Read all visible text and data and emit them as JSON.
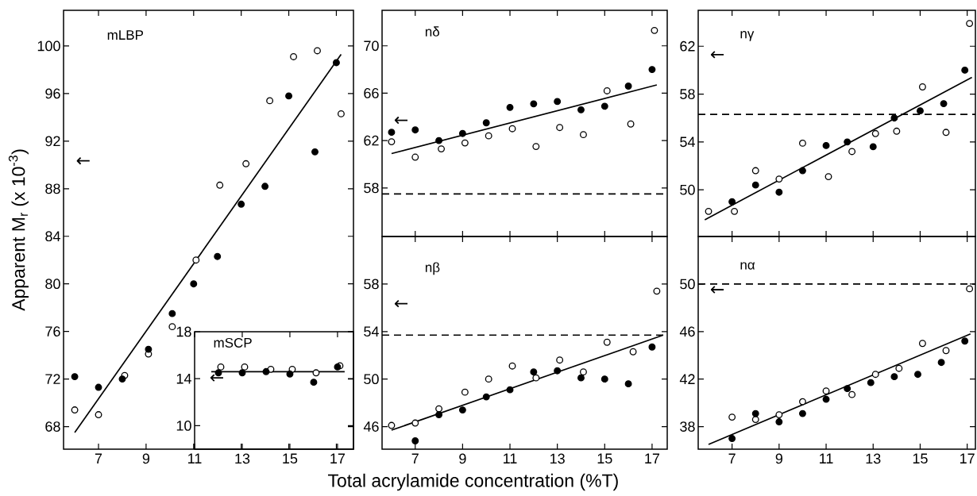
{
  "chart_data": [
    {
      "type": "scatter",
      "title": "mLBP",
      "ylabel": "Apparent M$_{r}$ (x 10$^{-3}$)",
      "xlim": [
        5.53,
        17.72
      ],
      "ylim": [
        66.1,
        103
      ],
      "xticks": [
        7,
        9,
        {
          "value": 11,
          "label": null
        },
        {
          "value": 13,
          "label": null
        },
        {
          "value": 15,
          "label": null
        },
        {
          "value": 17,
          "label": null
        }
      ],
      "yticks": [
        68,
        72,
        76,
        80,
        84,
        88,
        92,
        96,
        100
      ],
      "series": [
        {
          "type": "scatter",
          "color": "#000000",
          "x": [
            6,
            7,
            8,
            9.1,
            10.1,
            11,
            12,
            13,
            14,
            15,
            16.1,
            17
          ],
          "values": [
            72.2,
            71.3,
            72.0,
            74.5,
            77.5,
            80.0,
            82.3,
            86.7,
            88.2,
            95.8,
            91.1,
            98.6
          ]
        },
        {
          "type": "scatter",
          "color": "#ffffff",
          "x": [
            6,
            7,
            8.1,
            9.1,
            10.1,
            11.1,
            12.1,
            13.2,
            14.2,
            15.2,
            16.2,
            17.2
          ],
          "values": [
            69.4,
            69.0,
            72.3,
            74.1,
            76.4,
            82.0,
            88.3,
            90.1,
            95.4,
            99.1,
            99.6,
            94.3
          ]
        },
        {
          "type": "line",
          "marker": "none",
          "color": "#000000",
          "x": [
            6,
            17.2
          ],
          "values": [
            67.5,
            99.3
          ]
        }
      ],
      "annotations": [
        "←"
      ]
    },
    {
      "type": "scatter",
      "title": "mSCP",
      "xlim": [
        11,
        17.67
      ],
      "ylim": [
        8,
        18
      ],
      "xticks": [
        11,
        13,
        15,
        17
      ],
      "yticks": [
        10,
        14,
        18
      ],
      "series": [
        {
          "type": "scatter",
          "color": "#000000",
          "x": [
            12,
            13,
            14,
            15,
            16,
            17
          ],
          "values": [
            14.5,
            14.5,
            14.6,
            14.4,
            13.7,
            15.0
          ]
        },
        {
          "type": "scatter",
          "color": "#ffffff",
          "x": [
            12.1,
            13.1,
            14.2,
            15.1,
            16.1,
            17.1
          ],
          "values": [
            15.0,
            15.0,
            14.8,
            14.8,
            14.5,
            15.1
          ]
        },
        {
          "type": "line",
          "marker": "none",
          "color": "#000000",
          "x": [
            11.7,
            17.3
          ],
          "values": [
            14.6,
            14.6
          ]
        }
      ],
      "annotations": [
        "←"
      ]
    },
    {
      "type": "scatter",
      "title": "nδ",
      "tick_labels": "y",
      "xlim": [
        5.6,
        17.64
      ],
      "ylim": [
        53.9,
        73
      ],
      "xticks": [
        7,
        9,
        11,
        13,
        15,
        17
      ],
      "yticks": [
        58,
        62,
        66,
        70
      ],
      "series": [
        {
          "type": "scatter",
          "color": "#000000",
          "x": [
            6,
            7,
            8,
            9,
            10,
            11,
            12,
            13,
            14,
            15,
            16,
            17
          ],
          "values": [
            62.7,
            62.9,
            62.0,
            62.6,
            63.5,
            64.8,
            65.1,
            65.3,
            64.6,
            64.9,
            66.6,
            68.0
          ]
        },
        {
          "type": "scatter",
          "color": "#ffffff",
          "x": [
            6,
            7,
            8.1,
            9.1,
            10.1,
            11.1,
            12.1,
            13.1,
            14.1,
            15.1,
            16.1,
            17.1
          ],
          "values": [
            61.9,
            60.6,
            61.3,
            61.8,
            62.4,
            63.0,
            61.5,
            63.1,
            62.5,
            66.2,
            63.4,
            71.3
          ]
        },
        {
          "type": "line",
          "marker": "none",
          "color": "#000000",
          "x": [
            6,
            17.2
          ],
          "values": [
            60.9,
            66.7
          ]
        }
      ],
      "ref_lines": [
        {
          "axis": "y",
          "value": 57.5,
          "line_style": "dashed"
        }
      ],
      "annotations": [
        "←"
      ]
    },
    {
      "type": "scatter",
      "title": "nβ",
      "xlabel": "Total acrylamide concentration (%T)",
      "xlim": [
        5.6,
        17.64
      ],
      "ylim": [
        44.1,
        62
      ],
      "xticks": [
        7,
        9,
        11,
        13,
        15,
        17
      ],
      "yticks": [
        46,
        50,
        54,
        58
      ],
      "series": [
        {
          "type": "scatter",
          "color": "#000000",
          "x": [
            7,
            8,
            9,
            10,
            11,
            12,
            13,
            14,
            15,
            16,
            17
          ],
          "values": [
            44.8,
            47.0,
            47.4,
            48.5,
            49.1,
            50.6,
            50.7,
            50.1,
            50.0,
            49.6,
            52.7
          ]
        },
        {
          "type": "scatter",
          "color": "#ffffff",
          "x": [
            6,
            7,
            8,
            9.1,
            10.1,
            11.1,
            12.1,
            13.1,
            14.1,
            15.1,
            16.2,
            17.2
          ],
          "values": [
            46.1,
            46.3,
            47.5,
            48.9,
            50.0,
            51.1,
            50.1,
            51.6,
            50.6,
            53.1,
            52.3,
            57.4
          ]
        },
        {
          "type": "line",
          "marker": "none",
          "color": "#000000",
          "x": [
            6,
            17.47
          ],
          "values": [
            45.7,
            53.7
          ]
        }
      ],
      "ref_lines": [
        {
          "axis": "y",
          "value": 53.7,
          "line_style": "dashed"
        }
      ],
      "annotations": [
        "←"
      ]
    },
    {
      "type": "scatter",
      "title": "nγ",
      "tick_labels": "y",
      "xlim": [
        5.56,
        17.35
      ],
      "ylim": [
        46.1,
        65
      ],
      "xticks": [
        7,
        9,
        11,
        13,
        15,
        17
      ],
      "yticks": [
        50,
        54,
        58,
        62
      ],
      "series": [
        {
          "type": "scatter",
          "color": "#000000",
          "x": [
            7,
            8,
            9,
            10,
            11,
            11.9,
            13,
            13.9,
            15,
            16,
            16.9
          ],
          "values": [
            49.0,
            50.4,
            49.8,
            51.6,
            53.7,
            54.0,
            53.6,
            56.0,
            56.6,
            57.2,
            60.0
          ]
        },
        {
          "type": "scatter",
          "color": "#ffffff",
          "x": [
            6,
            7.1,
            8,
            9,
            10,
            11.1,
            12.1,
            13.1,
            14,
            15.1,
            16.1,
            17.1
          ],
          "values": [
            48.2,
            48.2,
            51.6,
            50.9,
            53.9,
            51.1,
            53.2,
            54.7,
            54.9,
            58.6,
            54.8,
            63.9
          ]
        },
        {
          "type": "line",
          "marker": "none",
          "color": "#000000",
          "x": [
            5.84,
            17.2
          ],
          "values": [
            47.5,
            59.4
          ]
        }
      ],
      "ref_lines": [
        {
          "axis": "y",
          "value": 56.3,
          "line_style": "dashed"
        }
      ],
      "annotations": [
        "←"
      ]
    },
    {
      "type": "scatter",
      "title": "nα",
      "xlim": [
        5.56,
        17.35
      ],
      "ylim": [
        36.1,
        54
      ],
      "xticks": [
        7,
        9,
        11,
        13,
        15,
        17
      ],
      "yticks": [
        38,
        42,
        46,
        50
      ],
      "series": [
        {
          "type": "scatter",
          "color": "#000000",
          "x": [
            7,
            8,
            9,
            10,
            11,
            11.9,
            12.9,
            13.9,
            14.9,
            15.9,
            16.9
          ],
          "values": [
            37.0,
            39.1,
            38.4,
            39.1,
            40.3,
            41.2,
            41.7,
            42.2,
            42.4,
            43.4,
            45.2
          ]
        },
        {
          "type": "scatter",
          "color": "#ffffff",
          "x": [
            7,
            8,
            9,
            10,
            11,
            12.1,
            13.1,
            14.1,
            15.1,
            16.1,
            17.1
          ],
          "values": [
            38.8,
            38.6,
            39.0,
            40.1,
            41.0,
            40.7,
            42.4,
            42.9,
            45.0,
            44.4,
            49.6
          ]
        },
        {
          "type": "line",
          "marker": "none",
          "color": "#000000",
          "x": [
            6,
            17.14
          ],
          "values": [
            36.5,
            45.8
          ]
        }
      ],
      "ref_lines": [
        {
          "axis": "y",
          "value": 50.0,
          "line_style": "dashed"
        }
      ],
      "annotations": [
        "←"
      ]
    }
  ]
}
